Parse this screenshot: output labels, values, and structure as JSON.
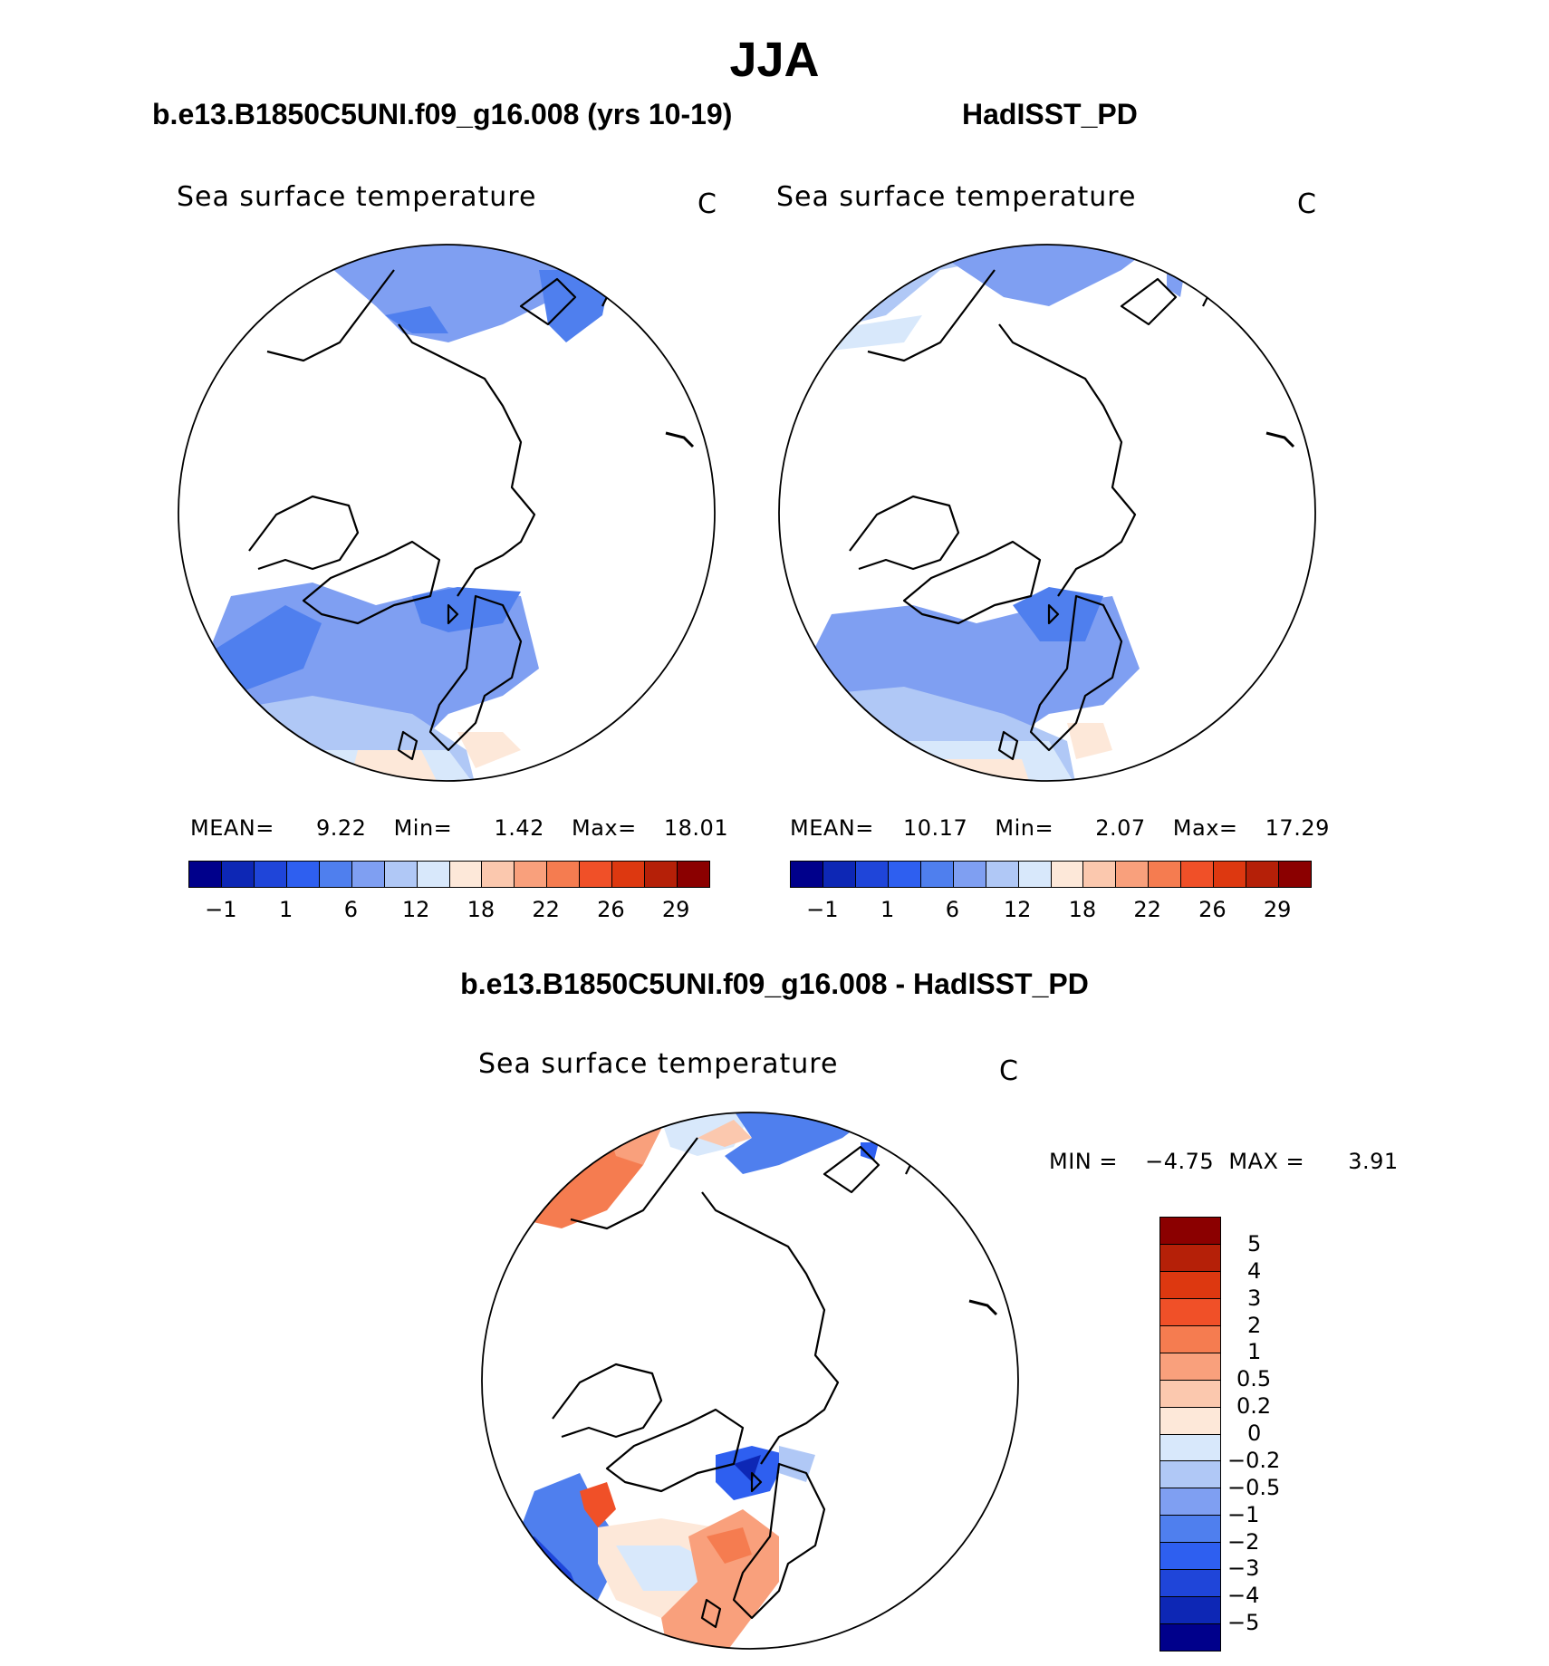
{
  "figure": {
    "season": "JJA"
  },
  "panels": {
    "case": {
      "title": "b.e13.B1850C5UNI.f09_g16.008 (yrs 10-19)",
      "variable": "Sea surface temperature",
      "units": "C",
      "mean_label": "MEAN=",
      "mean": "9.22",
      "min_label": "Min=",
      "min": "1.42",
      "max_label": "Max=",
      "max": "18.01"
    },
    "obs": {
      "title": "HadISST_PD",
      "variable": "Sea surface temperature",
      "units": "C",
      "mean_label": "MEAN=",
      "mean": "10.17",
      "min_label": "Min=",
      "min": "2.07",
      "max_label": "Max=",
      "max": "17.29"
    },
    "diff": {
      "title": "b.e13.B1850C5UNI.f09_g16.008 - HadISST_PD",
      "variable": "Sea surface temperature",
      "units": "C",
      "min_label": "MIN =",
      "min": "-4.75",
      "max_label": "MAX =",
      "max": "3.91"
    }
  },
  "colorbars": {
    "sst_colors": [
      "#00008b",
      "#0d27b5",
      "#1f45d9",
      "#2e5ff0",
      "#4f7fee",
      "#7f9ff2",
      "#b0c8f6",
      "#d8e8fb",
      "#fde8d9",
      "#fbc8ae",
      "#f9a07c",
      "#f57c50",
      "#f05028",
      "#dd3810",
      "#b52008",
      "#8b0000"
    ],
    "sst_ticks": [
      "-1",
      "1",
      "6",
      "12",
      "18",
      "22",
      "26",
      "29"
    ],
    "diff_colors": [
      "#8b0000",
      "#b52008",
      "#dd3810",
      "#f05028",
      "#f57c50",
      "#f9a07c",
      "#fbc8ae",
      "#fde8d9",
      "#d8e8fb",
      "#b0c8f6",
      "#7f9ff2",
      "#4f7fee",
      "#2e5ff0",
      "#1f45d9",
      "#0d27b5",
      "#00008b"
    ],
    "diff_ticks": [
      "5",
      "4",
      "3",
      "2",
      "1",
      "0.5",
      "0.2",
      "0",
      "-0.2",
      "-0.5",
      "-1",
      "-2",
      "-3",
      "-4",
      "-5"
    ]
  }
}
